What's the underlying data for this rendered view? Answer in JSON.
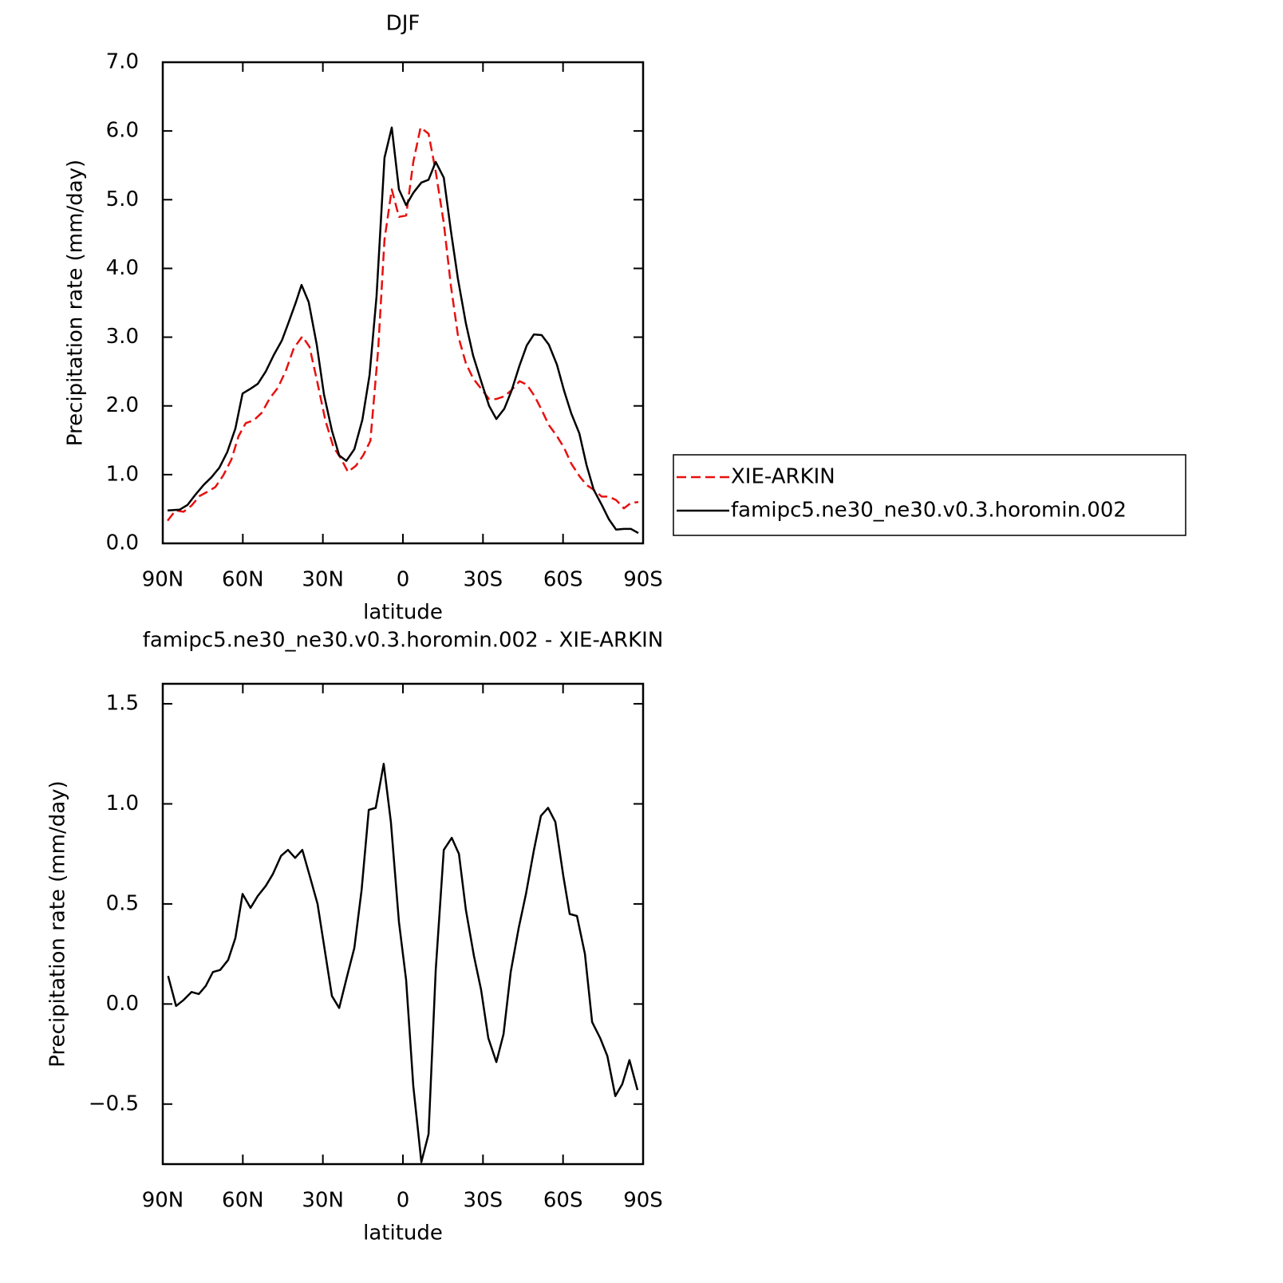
{
  "chart_data": [
    {
      "type": "line",
      "title": "DJF",
      "xlabel": "latitude",
      "ylabel": "Precipitation rate (mm/day)",
      "xlim": [
        90,
        -90
      ],
      "xticks": [
        {
          "value": 90,
          "label": "90N"
        },
        {
          "value": 60,
          "label": "60N"
        },
        {
          "value": 30,
          "label": "30N"
        },
        0,
        {
          "value": -30,
          "label": "30S"
        },
        {
          "value": -60,
          "label": "60S"
        },
        {
          "value": -90,
          "label": "90S"
        }
      ],
      "ylim": [
        0,
        7
      ],
      "yticks": [
        {
          "value": 0,
          "label": "0.0"
        },
        {
          "value": 1,
          "label": "1.0"
        },
        {
          "value": 2,
          "label": "2.0"
        },
        {
          "value": 3,
          "label": "3.0"
        },
        {
          "value": 4,
          "label": "4.0"
        },
        {
          "value": 5,
          "label": "5.0"
        },
        {
          "value": 6,
          "label": "6.0"
        },
        {
          "value": 7,
          "label": "7.0"
        }
      ],
      "legend": "right",
      "series": [
        {
          "name": "XIE-ARKIN",
          "color": "#e8100e",
          "dash": "dashed",
          "x": [
            88.2,
            85.2,
            82.2,
            79.2,
            76.2,
            73.3,
            70.3,
            67.3,
            64.3,
            61.6,
            58.9,
            55.9,
            52.9,
            49.9,
            46.9,
            43.9,
            40.9,
            37.7,
            35.0,
            32.0,
            29.0,
            26.0,
            23.3,
            20.6,
            17.6,
            14.9,
            12.2,
            9.3,
            6.9,
            4.2,
            1.5,
            -1.2,
            -3.9,
            -6.6,
            -9.6,
            -12.3,
            -15.3,
            -18.0,
            -20.6,
            -23.6,
            -26.3,
            -29.3,
            -32.3,
            -35.0,
            -38.0,
            -40.7,
            -43.7,
            -46.4,
            -49.4,
            -52.0,
            -54.7,
            -57.7,
            -60.4,
            -63.1,
            -66.1,
            -68.8,
            -71.5,
            -74.5,
            -77.2,
            -79.9,
            -82.8,
            -85.5,
            -88.2
          ],
          "values": [
            0.33,
            0.48,
            0.46,
            0.55,
            0.69,
            0.75,
            0.82,
            0.99,
            1.22,
            1.56,
            1.75,
            1.79,
            1.9,
            2.11,
            2.26,
            2.51,
            2.84,
            3.01,
            2.86,
            2.33,
            1.78,
            1.4,
            1.24,
            1.04,
            1.13,
            1.28,
            1.49,
            2.81,
            4.42,
            5.15,
            4.75,
            4.77,
            5.55,
            6.05,
            5.96,
            5.41,
            4.66,
            3.74,
            3.03,
            2.62,
            2.4,
            2.25,
            2.1,
            2.1,
            2.14,
            2.23,
            2.36,
            2.31,
            2.14,
            1.94,
            1.72,
            1.56,
            1.39,
            1.16,
            0.98,
            0.85,
            0.78,
            0.68,
            0.68,
            0.63,
            0.51,
            0.59,
            0.6
          ]
        },
        {
          "name": "famipc5.ne30_ne30.v0.3.horomin.002",
          "color": "#000000",
          "dash": "solid",
          "x": [
            88.2,
            83.7,
            80.7,
            77.7,
            74.7,
            71.8,
            68.8,
            65.8,
            62.8,
            60.1,
            57.1,
            54.4,
            51.4,
            48.4,
            45.4,
            42.8,
            40.1,
            38.0,
            35.3,
            32.3,
            29.6,
            26.6,
            23.9,
            21.2,
            18.2,
            15.2,
            12.5,
            9.9,
            6.9,
            4.2,
            1.5,
            -1.2,
            -3.9,
            -6.9,
            -9.6,
            -12.3,
            -15.3,
            -18.0,
            -20.6,
            -23.6,
            -26.3,
            -29.3,
            -32.3,
            -35.0,
            -38.0,
            -40.7,
            -43.7,
            -46.4,
            -49.1,
            -52.0,
            -54.7,
            -57.7,
            -60.4,
            -63.1,
            -66.1,
            -68.8,
            -71.5,
            -74.5,
            -77.2,
            -79.9,
            -82.8,
            -85.5,
            -88.2
          ],
          "values": [
            0.48,
            0.49,
            0.56,
            0.71,
            0.85,
            0.96,
            1.1,
            1.33,
            1.67,
            2.18,
            2.25,
            2.32,
            2.5,
            2.74,
            2.95,
            3.22,
            3.51,
            3.76,
            3.51,
            2.89,
            2.17,
            1.64,
            1.28,
            1.2,
            1.37,
            1.8,
            2.45,
            3.59,
            5.61,
            6.05,
            5.15,
            4.92,
            5.1,
            5.25,
            5.29,
            5.55,
            5.32,
            4.54,
            3.85,
            3.2,
            2.73,
            2.36,
            2.0,
            1.81,
            1.96,
            2.22,
            2.59,
            2.88,
            3.04,
            3.03,
            2.89,
            2.6,
            2.22,
            1.89,
            1.6,
            1.14,
            0.78,
            0.56,
            0.35,
            0.2,
            0.21,
            0.21,
            0.15
          ]
        }
      ]
    },
    {
      "type": "line",
      "title": "famipc5.ne30_ne30.v0.3.horomin.002 - XIE-ARKIN",
      "xlabel": "latitude",
      "ylabel": "Precipitation rate (mm/day)",
      "xlim": [
        90,
        -90
      ],
      "xticks": [
        {
          "value": 90,
          "label": "90N"
        },
        {
          "value": 60,
          "label": "60N"
        },
        {
          "value": 30,
          "label": "30N"
        },
        0,
        {
          "value": -30,
          "label": "30S"
        },
        {
          "value": -60,
          "label": "60S"
        },
        {
          "value": -90,
          "label": "90S"
        }
      ],
      "ylim": [
        -0.8,
        1.6
      ],
      "yticks": [
        {
          "value": -0.5,
          "label": "−0.5"
        },
        {
          "value": 0,
          "label": "0.0"
        },
        0.5,
        {
          "value": 1,
          "label": "1.0"
        },
        1.5
      ],
      "series": [
        {
          "color": "#000000",
          "dash": "solid",
          "x": [
            88.0,
            85.0,
            82.2,
            79.2,
            76.5,
            73.9,
            71.2,
            68.5,
            65.5,
            62.8,
            60.1,
            57.1,
            54.4,
            51.4,
            48.7,
            45.7,
            43.1,
            40.4,
            37.7,
            34.7,
            32.0,
            29.3,
            26.6,
            23.9,
            20.9,
            18.2,
            15.5,
            12.8,
            10.2,
            7.2,
            4.5,
            1.5,
            -1.2,
            -3.9,
            -6.9,
            -9.6,
            -12.3,
            -15.3,
            -18.3,
            -21.0,
            -23.6,
            -26.6,
            -29.3,
            -32.0,
            -35.0,
            -37.7,
            -40.4,
            -43.4,
            -46.1,
            -49.1,
            -51.7,
            -54.4,
            -57.1,
            -60.1,
            -62.5,
            -65.2,
            -68.2,
            -70.9,
            -73.9,
            -76.6,
            -79.6,
            -82.2,
            -84.9,
            -87.9
          ],
          "values": [
            0.14,
            -0.01,
            0.02,
            0.06,
            0.05,
            0.09,
            0.16,
            0.17,
            0.22,
            0.33,
            0.55,
            0.48,
            0.54,
            0.59,
            0.65,
            0.74,
            0.77,
            0.73,
            0.77,
            0.63,
            0.5,
            0.27,
            0.04,
            -0.02,
            0.14,
            0.28,
            0.57,
            0.97,
            0.98,
            1.2,
            0.91,
            0.41,
            0.12,
            -0.41,
            -0.79,
            -0.65,
            0.17,
            0.77,
            0.83,
            0.75,
            0.47,
            0.24,
            0.07,
            -0.17,
            -0.29,
            -0.15,
            0.16,
            0.38,
            0.55,
            0.77,
            0.94,
            0.98,
            0.91,
            0.64,
            0.45,
            0.44,
            0.25,
            -0.09,
            -0.17,
            -0.26,
            -0.46,
            -0.4,
            -0.28,
            -0.43
          ]
        }
      ]
    }
  ]
}
